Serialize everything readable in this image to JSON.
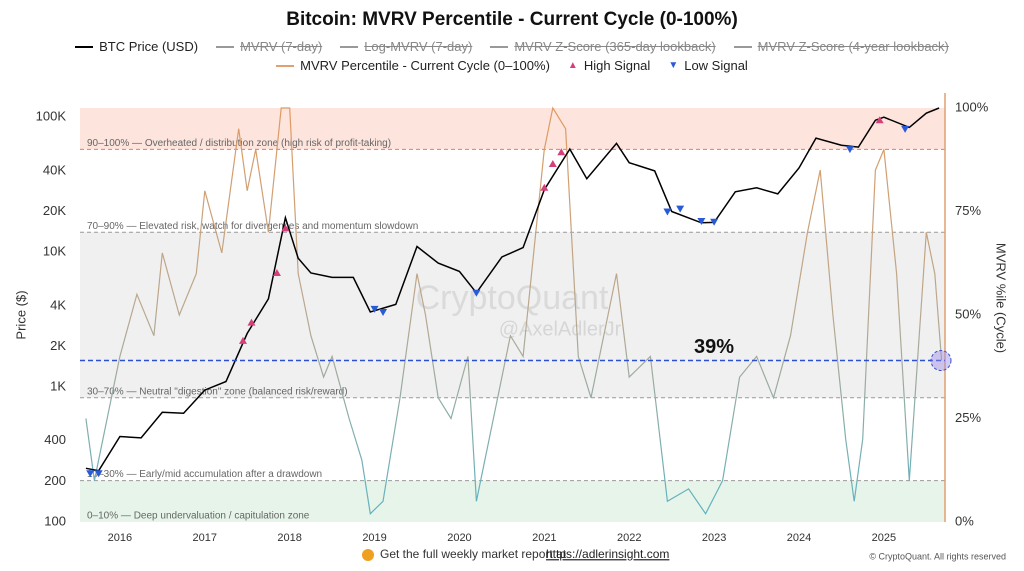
{
  "chart_data": {
    "type": "line",
    "title": "Bitcoin: MVRV Percentile - Current Cycle (0-100%)",
    "legend_hidden": [
      "MVRV (7-day)",
      "Log-MVRV (7-day)",
      "MVRV Z-Score (365-day lookback)",
      "MVRV Z-Score (4-year lookback)"
    ],
    "ylabel": "Price ($)",
    "y2label": "MVRV %ile (Cycle)",
    "log_y": true,
    "xlim": [
      2015.53,
      2025.72
    ],
    "xticks": [
      2016,
      2017,
      2018,
      2019,
      2020,
      2021,
      2022,
      2023,
      2024,
      2025
    ],
    "ylim": [
      100,
      117000
    ],
    "yticks": [
      {
        "value": 100000,
        "label": "100K"
      },
      {
        "value": 40000,
        "label": "40K"
      },
      {
        "value": 20000,
        "label": "20K"
      },
      {
        "value": 10000,
        "label": "10K"
      },
      {
        "value": 4000,
        "label": "4K"
      },
      {
        "value": 2000,
        "label": "2K"
      },
      {
        "value": 1000,
        "label": "1K"
      },
      400,
      200,
      100
    ],
    "y2lim": [
      0,
      100
    ],
    "y2ticks": [
      {
        "value": 100,
        "label": "100%"
      },
      {
        "value": 75,
        "label": "75%"
      },
      {
        "value": 50,
        "label": "50%"
      },
      {
        "value": 25,
        "label": "25%"
      },
      {
        "value": 0,
        "label": "0%"
      }
    ],
    "series": [
      {
        "name": "BTC Price (USD)",
        "color": "#000000",
        "axis": "y",
        "x": [
          2015.6,
          2015.75,
          2016.0,
          2016.25,
          2016.5,
          2016.75,
          2017.0,
          2017.25,
          2017.5,
          2017.75,
          2017.95,
          2018.1,
          2018.25,
          2018.5,
          2018.75,
          2018.95,
          2019.25,
          2019.5,
          2019.75,
          2020.0,
          2020.2,
          2020.5,
          2020.75,
          2021.0,
          2021.3,
          2021.5,
          2021.85,
          2022.0,
          2022.3,
          2022.5,
          2022.85,
          2023.0,
          2023.25,
          2023.5,
          2023.75,
          2024.0,
          2024.2,
          2024.5,
          2024.7,
          2024.9,
          2025.0,
          2025.3,
          2025.5,
          2025.65
        ],
        "values": [
          250,
          240,
          430,
          420,
          650,
          640,
          950,
          1100,
          2500,
          4500,
          18000,
          9000,
          7000,
          6500,
          6500,
          3600,
          4100,
          11000,
          8300,
          7200,
          5000,
          9200,
          10800,
          29000,
          58000,
          35000,
          64000,
          46000,
          40000,
          20000,
          16500,
          16600,
          28000,
          30000,
          27000,
          42000,
          70000,
          62000,
          60000,
          95000,
          100000,
          84000,
          107000,
          117000
        ]
      },
      {
        "name": "MVRV Percentile - Current Cycle (0–100%)",
        "color": "#e0a070",
        "axis": "y2",
        "x": [
          2015.6,
          2015.7,
          2015.8,
          2016.0,
          2016.2,
          2016.4,
          2016.5,
          2016.7,
          2016.9,
          2017.0,
          2017.2,
          2017.4,
          2017.5,
          2017.6,
          2017.75,
          2017.9,
          2018.0,
          2018.1,
          2018.25,
          2018.4,
          2018.5,
          2018.7,
          2018.85,
          2018.95,
          2019.1,
          2019.3,
          2019.5,
          2019.6,
          2019.75,
          2019.9,
          2020.1,
          2020.2,
          2020.4,
          2020.6,
          2020.75,
          2020.9,
          2021.0,
          2021.1,
          2021.25,
          2021.4,
          2021.55,
          2021.85,
          2022.0,
          2022.25,
          2022.45,
          2022.7,
          2022.9,
          2023.1,
          2023.3,
          2023.5,
          2023.7,
          2023.9,
          2024.1,
          2024.25,
          2024.4,
          2024.55,
          2024.65,
          2024.75,
          2024.9,
          2025.0,
          2025.15,
          2025.3,
          2025.4,
          2025.5,
          2025.6,
          2025.68
        ],
        "values": [
          25,
          10,
          20,
          40,
          55,
          45,
          65,
          50,
          60,
          80,
          65,
          95,
          80,
          90,
          70,
          100,
          100,
          60,
          45,
          35,
          40,
          25,
          15,
          2,
          5,
          30,
          60,
          50,
          30,
          25,
          40,
          5,
          25,
          45,
          40,
          70,
          90,
          100,
          95,
          40,
          30,
          60,
          35,
          40,
          5,
          8,
          2,
          10,
          35,
          40,
          30,
          45,
          70,
          85,
          50,
          20,
          5,
          20,
          85,
          90,
          60,
          10,
          40,
          70,
          60,
          39
        ]
      }
    ],
    "signals": [
      {
        "name": "High Signal",
        "color": "#d6407a",
        "x": [
          2017.45,
          2017.55,
          2017.85,
          2017.95,
          2021.0,
          2021.1,
          2021.2,
          2024.95
        ],
        "values": [
          2200,
          3000,
          7000,
          15000,
          30000,
          45000,
          55000,
          95000
        ]
      },
      {
        "name": "Low Signal",
        "color": "#2a5bd7",
        "x": [
          2015.65,
          2015.75,
          2019.0,
          2019.1,
          2020.2,
          2022.45,
          2022.6,
          2022.85,
          2023.0,
          2024.6,
          2025.25
        ],
        "values": [
          230,
          230,
          3800,
          3600,
          5000,
          20000,
          21000,
          17000,
          16800,
          58000,
          82000
        ]
      }
    ],
    "zones": [
      {
        "label": "90–100% — Overheated / distribution zone (high risk of profit-taking)",
        "from": 90,
        "to": 100,
        "fill": "#fde4dd",
        "line": "#e07a7a"
      },
      {
        "label": "70–90% — Elevated risk, watch for divergences and momentum slowdown",
        "from": 70,
        "to": 90,
        "line": "#999999"
      },
      {
        "label": "30–70% — Neutral \"digestion\" zone (balanced risk/reward)",
        "from": 30,
        "to": 70,
        "fill": "#f0f0f0",
        "line": "#999999"
      },
      {
        "label": "10–30% — Early/mid accumulation after a drawdown",
        "from": 10,
        "to": 30,
        "line": "#999999"
      },
      {
        "label": "0–10% — Deep undervaluation / capitulation zone",
        "from": 0,
        "to": 10,
        "fill": "#e6f4ea"
      }
    ],
    "current": {
      "value": 39,
      "label": "39%"
    },
    "watermark": [
      "CryptoQuant",
      "@AxelAdlerJr"
    ],
    "footer": "Get the full weekly market report at",
    "link": "https://adlerinsight.com",
    "copyright": "© CryptoQuant. All rights reserved"
  }
}
